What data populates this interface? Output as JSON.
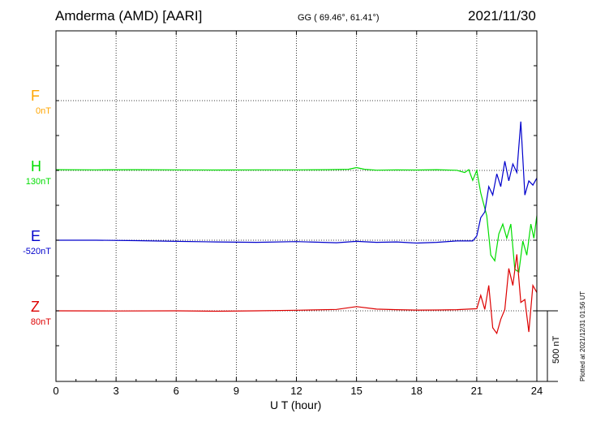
{
  "header": {
    "station": "Amderma (AMD)  [AARI]",
    "coords": "GG ( 69.46°,  61.41°)",
    "date": "2021/11/30"
  },
  "plotted_note": "Plotted at 2021/12/31 01:56 UT",
  "chart_data": {
    "type": "line",
    "xlabel": "U T (hour)",
    "xlim": [
      0,
      24
    ],
    "xticks": [
      0,
      3,
      6,
      9,
      12,
      15,
      18,
      21,
      24
    ],
    "scale_bar": "500 nT",
    "colors": {
      "F": "#ffa500",
      "H": "#00dd00",
      "E": "#0000cc",
      "Z": "#dd0000"
    },
    "series": [
      {
        "name": "F",
        "baseline": "0nT",
        "points": []
      },
      {
        "name": "H",
        "baseline": "130nT",
        "points": [
          [
            0,
            5
          ],
          [
            2,
            4
          ],
          [
            4,
            5
          ],
          [
            6,
            4
          ],
          [
            8,
            3
          ],
          [
            10,
            4
          ],
          [
            12,
            4
          ],
          [
            13.5,
            5
          ],
          [
            14.6,
            8
          ],
          [
            15.0,
            20
          ],
          [
            15.4,
            8
          ],
          [
            16,
            2
          ],
          [
            17,
            4
          ],
          [
            18,
            3
          ],
          [
            19,
            5
          ],
          [
            20,
            1
          ],
          [
            20.4,
            -15
          ],
          [
            20.6,
            5
          ],
          [
            20.8,
            -70
          ],
          [
            21.0,
            0
          ],
          [
            21.2,
            -160
          ],
          [
            21.5,
            -320
          ],
          [
            21.7,
            -600
          ],
          [
            21.9,
            -640
          ],
          [
            22.1,
            -450
          ],
          [
            22.3,
            -380
          ],
          [
            22.5,
            -480
          ],
          [
            22.7,
            -380
          ],
          [
            22.9,
            -700
          ],
          [
            23.1,
            -720
          ],
          [
            23.3,
            -500
          ],
          [
            23.5,
            -600
          ],
          [
            23.7,
            -380
          ],
          [
            23.85,
            -480
          ],
          [
            24,
            -320
          ]
        ]
      },
      {
        "name": "E",
        "baseline": "-520nT",
        "points": [
          [
            0,
            0
          ],
          [
            2,
            0
          ],
          [
            4,
            -3
          ],
          [
            6,
            -8
          ],
          [
            8,
            -12
          ],
          [
            10,
            -15
          ],
          [
            12,
            -10
          ],
          [
            14,
            -18
          ],
          [
            15,
            -8
          ],
          [
            16,
            -15
          ],
          [
            17,
            -12
          ],
          [
            18,
            -20
          ],
          [
            19,
            -15
          ],
          [
            20,
            -5
          ],
          [
            20.8,
            -5
          ],
          [
            21.0,
            30
          ],
          [
            21.2,
            160
          ],
          [
            21.4,
            200
          ],
          [
            21.6,
            380
          ],
          [
            21.8,
            320
          ],
          [
            22.0,
            470
          ],
          [
            22.2,
            380
          ],
          [
            22.4,
            560
          ],
          [
            22.6,
            420
          ],
          [
            22.8,
            540
          ],
          [
            23.0,
            480
          ],
          [
            23.2,
            840
          ],
          [
            23.4,
            320
          ],
          [
            23.6,
            420
          ],
          [
            23.8,
            390
          ],
          [
            24,
            440
          ]
        ]
      },
      {
        "name": "Z",
        "baseline": "80nT",
        "points": [
          [
            0,
            0
          ],
          [
            3,
            -1
          ],
          [
            6,
            0
          ],
          [
            8,
            -3
          ],
          [
            10,
            0
          ],
          [
            12,
            4
          ],
          [
            14,
            10
          ],
          [
            15,
            30
          ],
          [
            16,
            12
          ],
          [
            17,
            8
          ],
          [
            18,
            5
          ],
          [
            19,
            6
          ],
          [
            20,
            8
          ],
          [
            21.0,
            15
          ],
          [
            21.2,
            110
          ],
          [
            21.4,
            10
          ],
          [
            21.6,
            180
          ],
          [
            21.8,
            -120
          ],
          [
            22.0,
            -160
          ],
          [
            22.2,
            -60
          ],
          [
            22.4,
            10
          ],
          [
            22.6,
            300
          ],
          [
            22.8,
            180
          ],
          [
            23.0,
            400
          ],
          [
            23.2,
            60
          ],
          [
            23.4,
            80
          ],
          [
            23.6,
            -150
          ],
          [
            23.8,
            180
          ],
          [
            24,
            130
          ]
        ]
      }
    ]
  }
}
